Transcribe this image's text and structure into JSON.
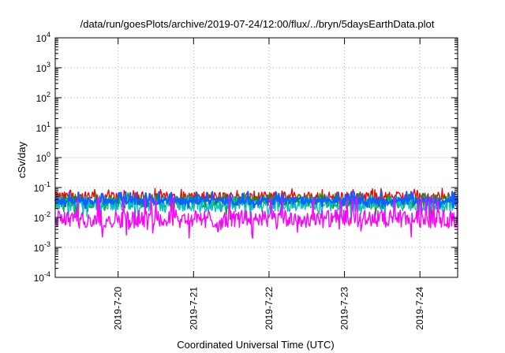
{
  "chart_data": {
    "type": "line",
    "title": "/data/run/goesPlots/archive/2019-07-24/12:00/flux/../bryn/5daysEarthData.plot",
    "xlabel": "Coordinated Universal Time (UTC)",
    "ylabel": "cSv/day",
    "y_scale": "log",
    "ylim": [
      0.0001,
      10000
    ],
    "yticks": [
      {
        "value": 0.0001,
        "base": "10",
        "exp": "-4"
      },
      {
        "value": 0.001,
        "base": "10",
        "exp": "-3"
      },
      {
        "value": 0.01,
        "base": "10",
        "exp": "-2"
      },
      {
        "value": 0.1,
        "base": "10",
        "exp": "-1"
      },
      {
        "value": 1,
        "base": "10",
        "exp": "0"
      },
      {
        "value": 10,
        "base": "10",
        "exp": "1"
      },
      {
        "value": 100,
        "base": "10",
        "exp": "2"
      },
      {
        "value": 1000,
        "base": "10",
        "exp": "3"
      },
      {
        "value": 10000,
        "base": "10",
        "exp": "4"
      }
    ],
    "xlim": [
      "2019-07-19 04:00",
      "2019-07-24 12:00"
    ],
    "xticks": [
      {
        "value": "2019-07-20 00:00",
        "label": "2019-7-20"
      },
      {
        "value": "2019-07-21 00:00",
        "label": "2019-7-21"
      },
      {
        "value": "2019-07-22 00:00",
        "label": "2019-7-22"
      },
      {
        "value": "2019-07-23 00:00",
        "label": "2019-7-23"
      },
      {
        "value": "2019-07-24 00:00",
        "label": "2019-7-24"
      }
    ],
    "grid": true,
    "series": [
      {
        "color": "#ff0000",
        "level": 0.05,
        "spread": 0.16,
        "spikes": 0.085
      },
      {
        "color": "#00a000",
        "level": 0.034,
        "spread": 0.22,
        "spikes": 0.06
      },
      {
        "color": "#00c0c0",
        "level": 0.028,
        "spread": 0.26,
        "spikes": 0.05
      },
      {
        "color": "#1060ff",
        "level": 0.036,
        "spread": 0.12,
        "spikes": 0.065
      },
      {
        "color": "#ff00ff",
        "level": 0.009,
        "spread": 0.3,
        "spikes": 0.045
      }
    ]
  }
}
